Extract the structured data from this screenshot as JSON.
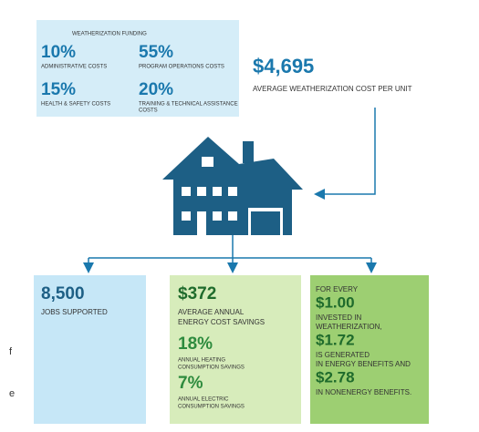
{
  "funding": {
    "title": "WEATHERIZATION FUNDING",
    "items": [
      {
        "value": "10%",
        "label": [
          "ADMINISTRATIVE COSTS"
        ]
      },
      {
        "value": "55%",
        "label": [
          "PROGRAM OPERATIONS COSTS"
        ]
      },
      {
        "value": "15%",
        "label": [
          "HEALTH & SAFETY COSTS"
        ]
      },
      {
        "value": "20%",
        "label": [
          "TRAINING & TECHNICAL ASSISTANCE",
          "COSTS"
        ]
      }
    ]
  },
  "cost": {
    "value": "$4,695",
    "label": "AVERAGE WEATHERIZATION COST PER UNIT"
  },
  "jobs": {
    "value": "8,500",
    "label": "JOBS SUPPORTED"
  },
  "savings": {
    "value": "$372",
    "label": [
      "AVERAGE ANNUAL",
      "ENERGY COST SAVINGS"
    ],
    "items": [
      {
        "value": "18%",
        "label": [
          "ANNUAL HEATING",
          "CONSUMPTION SAVINGS"
        ]
      },
      {
        "value": "7%",
        "label": [
          "ANNUAL ELECTRIC",
          "CONSUMPTION SAVINGS"
        ]
      }
    ]
  },
  "benefits": {
    "lines": [
      {
        "text": "FOR EVERY",
        "big": false
      },
      {
        "text": "$1.00",
        "big": true
      },
      {
        "text": "INVESTED IN",
        "big": false
      },
      {
        "text": "WEATHERIZATION,",
        "big": false
      },
      {
        "text": "$1.72",
        "big": true
      },
      {
        "text": "IS GENERATED",
        "big": false
      },
      {
        "text": "IN ENERGY BENEFITS AND",
        "big": false
      },
      {
        "text": "$2.78",
        "big": true
      },
      {
        "text": "IN NONENERGY BENEFITS.",
        "big": false
      }
    ]
  },
  "side_text": [
    "f",
    "e"
  ]
}
